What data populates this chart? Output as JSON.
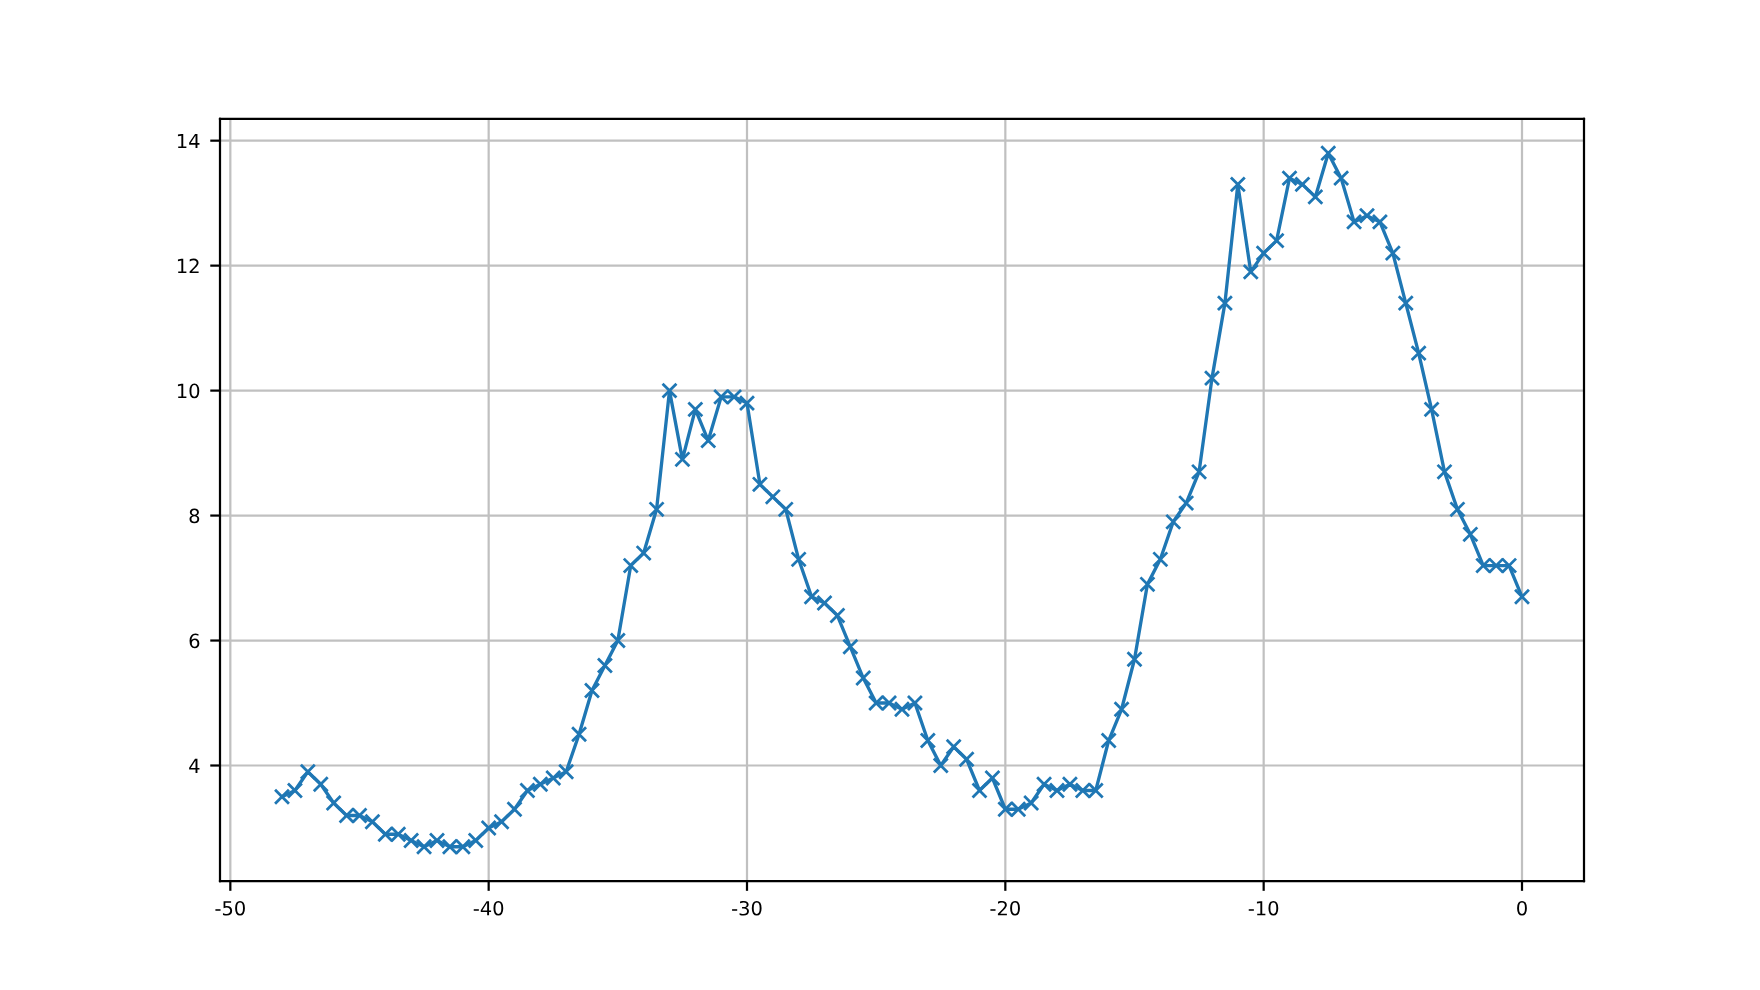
{
  "chart_data": {
    "type": "line",
    "marker": "cross",
    "line_style": "solid",
    "grid": true,
    "x": [
      -48,
      -47.5,
      -47,
      -46.5,
      -46,
      -45.5,
      -45,
      -44.5,
      -44,
      -43.5,
      -43,
      -42.5,
      -42,
      -41.5,
      -41,
      -40.5,
      -40,
      -39.5,
      -39,
      -38.5,
      -38,
      -37.5,
      -37,
      -36.5,
      -36,
      -35.5,
      -35,
      -34.5,
      -34,
      -33.5,
      -33,
      -32.5,
      -32,
      -31.5,
      -31,
      -30.5,
      -30,
      -29.5,
      -29,
      -28.5,
      -28,
      -27.5,
      -27,
      -26.5,
      -26,
      -25.5,
      -25,
      -24.5,
      -24,
      -23.5,
      -23,
      -22.5,
      -22,
      -21.5,
      -21,
      -20.5,
      -20,
      -19.5,
      -19,
      -18.5,
      -18,
      -17.5,
      -17,
      -16.5,
      -16,
      -15.5,
      -15,
      -14.5,
      -14,
      -13.5,
      -13,
      -12.5,
      -12,
      -11.5,
      -11,
      -10.5,
      -10,
      -9.5,
      -9,
      -8.5,
      -8,
      -7.5,
      -7,
      -6.5,
      -6,
      -5.5,
      -5,
      -4.5,
      -4,
      -3.5,
      -3,
      -2.5,
      -2,
      -1.5,
      -1,
      -0.5,
      0
    ],
    "series": [
      {
        "color": "#1f77b4",
        "values": [
          3.5,
          3.6,
          3.9,
          3.7,
          3.4,
          3.2,
          3.2,
          3.1,
          2.9,
          2.9,
          2.8,
          2.7,
          2.8,
          2.7,
          2.7,
          2.8,
          3.0,
          3.1,
          3.3,
          3.6,
          3.7,
          3.8,
          3.9,
          4.5,
          5.2,
          5.6,
          6.0,
          7.2,
          7.4,
          8.1,
          10.0,
          8.9,
          9.7,
          9.2,
          9.9,
          9.9,
          9.8,
          8.5,
          8.3,
          8.1,
          7.3,
          6.7,
          6.6,
          6.4,
          5.9,
          5.4,
          5.0,
          5.0,
          4.9,
          5.0,
          4.4,
          4.0,
          4.3,
          4.1,
          3.6,
          3.8,
          3.3,
          3.3,
          3.4,
          3.7,
          3.6,
          3.7,
          3.6,
          3.6,
          4.4,
          4.9,
          5.7,
          6.9,
          7.3,
          7.9,
          8.2,
          8.7,
          10.2,
          11.4,
          13.3,
          11.9,
          12.2,
          12.4,
          13.4,
          13.3,
          13.1,
          13.8,
          13.4,
          12.7,
          12.8,
          12.7,
          12.2,
          11.4,
          10.6,
          9.7,
          8.7,
          8.1,
          7.7,
          7.2,
          7.2,
          7.2,
          6.7
        ]
      }
    ],
    "xlim": [
      -50.4,
      2.4
    ],
    "ylim": [
      2.15,
      14.35
    ],
    "xticks": [
      -50,
      -40,
      -30,
      -20,
      -10,
      0
    ],
    "yticks": [
      4,
      6,
      8,
      10,
      12,
      14
    ]
  }
}
